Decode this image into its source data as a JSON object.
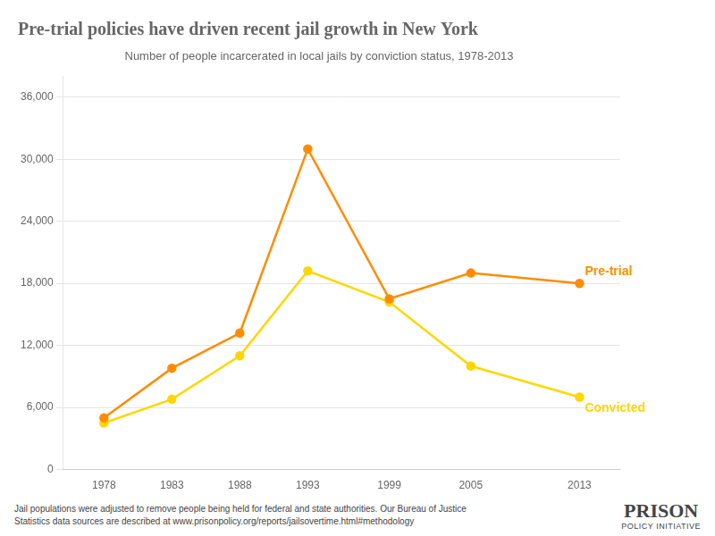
{
  "chart_data": {
    "type": "line",
    "title": "Pre-trial policies have driven recent jail growth in New York",
    "subtitle": "Number of people incarcerated in local jails by conviction status, 1978-2013",
    "x": [
      1978,
      1983,
      1988,
      1993,
      1999,
      2005,
      2013
    ],
    "series": [
      {
        "name": "Pre-trial",
        "color": "#FF8C00",
        "marker": "circle",
        "values": [
          5000,
          9800,
          13200,
          31000,
          16500,
          19000,
          18000
        ]
      },
      {
        "name": "Convicted",
        "color": "#FFD700",
        "marker": "circle",
        "values": [
          4500,
          6800,
          11000,
          19200,
          16200,
          10000,
          7000
        ]
      }
    ],
    "xlim": [
      1975,
      2016
    ],
    "xticks": [
      1978,
      1983,
      1988,
      1993,
      1999,
      2005,
      2013
    ],
    "ylim": [
      0,
      38000
    ],
    "yticks": [
      0,
      {
        "value": 6000,
        "label": "6,000"
      },
      {
        "value": 12000,
        "label": "12,000"
      },
      {
        "value": 18000,
        "label": "18,000"
      },
      {
        "value": 24000,
        "label": "24,000"
      },
      {
        "value": 30000,
        "label": "30,000"
      },
      {
        "value": 36000,
        "label": "36,000"
      }
    ],
    "grid": true,
    "footnote": [
      "Jail populations were adjusted to remove people being held for federal and state authorities. Our Bureau of Justice",
      "Statistics data sources are described at www.prisonpolicy.org/reports/jailsovertime.html#methodology"
    ],
    "annotations": [
      "PRISON",
      "POLICY INITIATIVE"
    ]
  }
}
